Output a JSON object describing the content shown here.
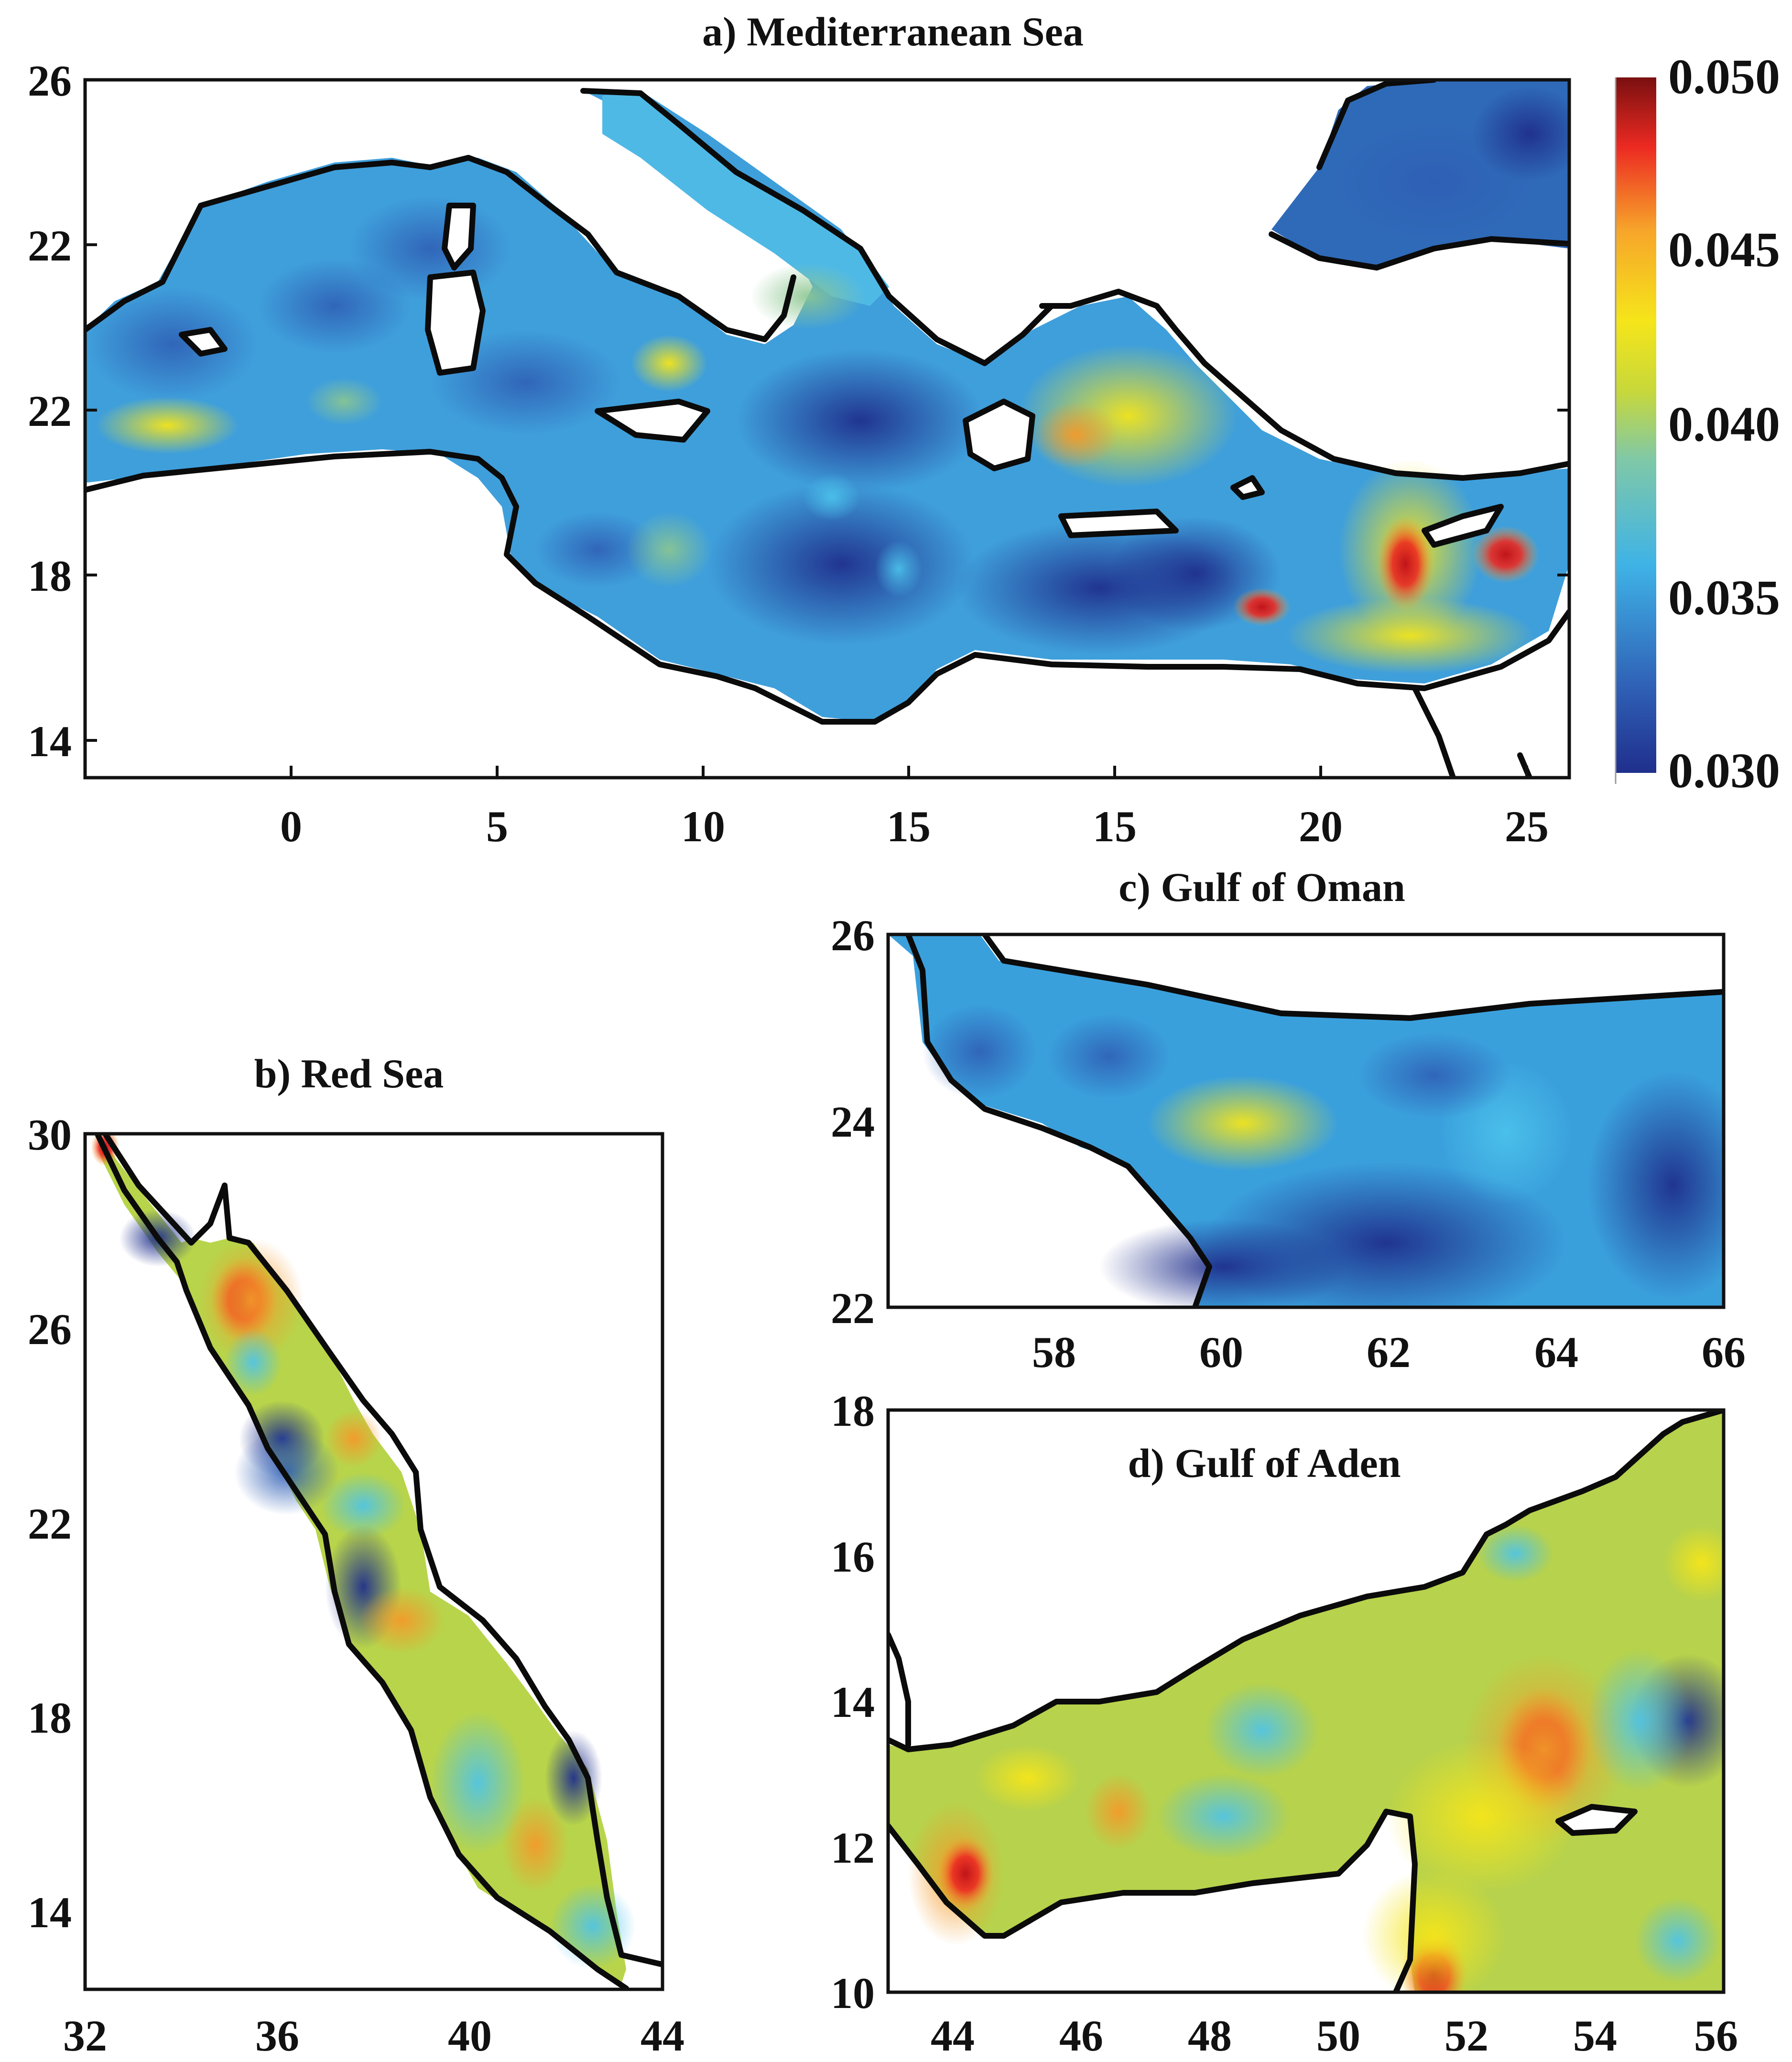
{
  "panels": [
    {
      "id": "mediterranean",
      "title": "a) Mediterranean Sea",
      "x_ticks": [
        "0",
        "5",
        "10",
        "15",
        "15",
        "20",
        "25"
      ],
      "y_ticks": [
        "26",
        "22",
        "22",
        "18",
        "14"
      ]
    },
    {
      "id": "red_sea",
      "title": "b) Red Sea",
      "x_ticks": [
        "32",
        "36",
        "40",
        "44"
      ],
      "y_ticks": [
        "30",
        "26",
        "22",
        "18",
        "14"
      ]
    },
    {
      "id": "gulf_of_oman",
      "title": "c) Gulf of Oman",
      "x_ticks": [
        "58",
        "60",
        "62",
        "64",
        "66"
      ],
      "y_ticks": [
        "26",
        "24",
        "22"
      ]
    },
    {
      "id": "gulf_of_aden",
      "title": "d) Gulf of Aden",
      "x_ticks": [
        "44",
        "46",
        "48",
        "50",
        "52",
        "54",
        "56"
      ],
      "y_ticks": [
        "18",
        "16",
        "14",
        "12",
        "10"
      ]
    }
  ],
  "colorbar": {
    "labels": [
      "0.050",
      "0.045",
      "0.040",
      "0.035",
      "0.030"
    ],
    "min": 0.03,
    "max": 0.05,
    "colors": [
      "#1f2f8c",
      "#2f5fb5",
      "#3fb3e6",
      "#7fc8a8",
      "#c8d83a",
      "#f5e51a",
      "#f7a52a",
      "#ec2a22",
      "#7a0f10"
    ]
  }
}
